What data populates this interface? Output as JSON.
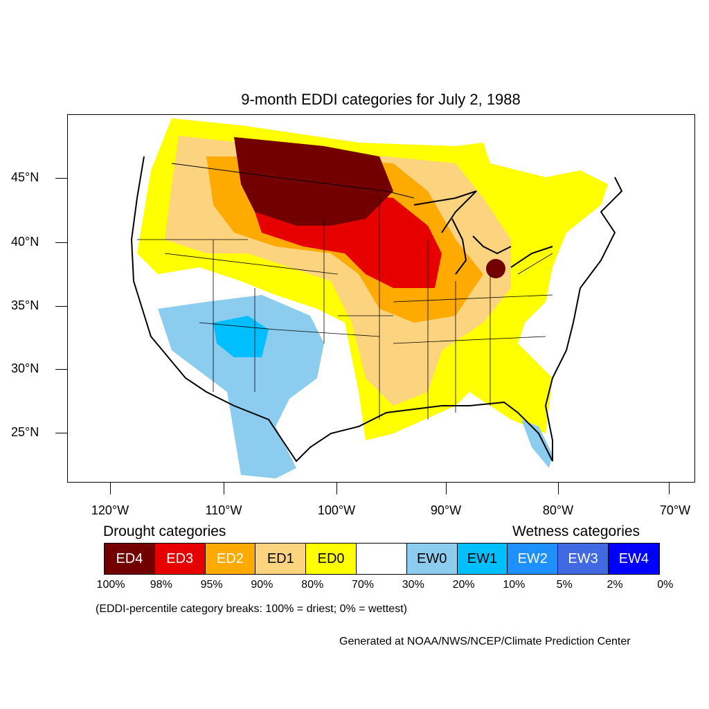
{
  "title": "9-month EDDI categories for July 2, 1988",
  "lat_labels": [
    "45°N",
    "40°N",
    "35°N",
    "30°N",
    "25°N"
  ],
  "lon_labels": [
    "120°W",
    "110°W",
    "100°W",
    "90°W",
    "80°W",
    "70°W"
  ],
  "drought_heading": "Drought categories",
  "wetness_heading": "Wetness categories",
  "legend": [
    {
      "label": "ED4",
      "color": "#730000",
      "text_color": "#ffffff"
    },
    {
      "label": "ED3",
      "color": "#e60000",
      "text_color": "#ffffff"
    },
    {
      "label": "ED2",
      "color": "#ffaa00",
      "text_color": "#ffffff"
    },
    {
      "label": "ED1",
      "color": "#fcd37f",
      "text_color": "#000000"
    },
    {
      "label": "ED0",
      "color": "#ffff00",
      "text_color": "#000000"
    },
    {
      "label": "",
      "color": "#ffffff",
      "text_color": "#000000"
    },
    {
      "label": "EW0",
      "color": "#8ccdef",
      "text_color": "#000000"
    },
    {
      "label": "EW1",
      "color": "#00bfff",
      "text_color": "#000000"
    },
    {
      "label": "EW2",
      "color": "#1e90ff",
      "text_color": "#ffffff"
    },
    {
      "label": "EW3",
      "color": "#4169e1",
      "text_color": "#ffffff"
    },
    {
      "label": "EW4",
      "color": "#0000ff",
      "text_color": "#ffffff"
    }
  ],
  "percentiles": [
    "100%",
    "98%",
    "95%",
    "90%",
    "80%",
    "70%",
    "30%",
    "20%",
    "10%",
    "5%",
    "2%",
    "0%"
  ],
  "note": "(EDDI-percentile category breaks: 100% = driest; 0% = wettest)",
  "credit": "Generated at NOAA/NWS/NCEP/Climate Prediction Center"
}
